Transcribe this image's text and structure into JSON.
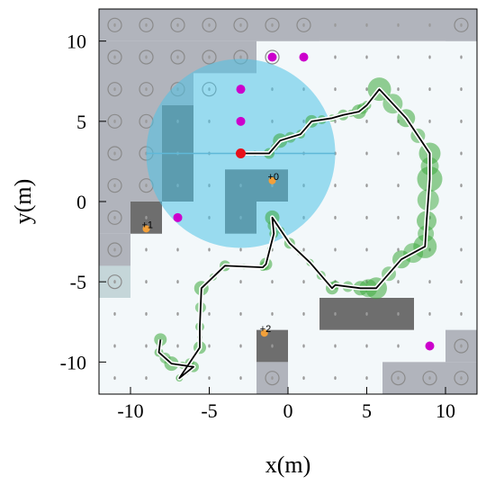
{
  "chart_data": {
    "type": "scatter",
    "title": "",
    "xlabel": "x(m)",
    "ylabel": "y(m)",
    "xlim": [
      -12,
      12
    ],
    "ylim": [
      -12,
      12
    ],
    "xticks": [
      -10,
      -5,
      0,
      5,
      10
    ],
    "yticks": [
      10,
      5,
      0,
      -5,
      -10
    ],
    "grid": false,
    "colors": {
      "background": "#f3f8fa",
      "blocked": "#b1b4bc",
      "blocked_light": "#c5d6d9",
      "obstacle": "#6e6e6e",
      "sensing": "#4fc3e6",
      "trajectory": "#000000",
      "uncertainty": "#3aa83a",
      "waypoint": "#cc00cc",
      "start": "#e8101a",
      "robot": "#f2a03a"
    },
    "blocked_cells": [
      [
        -12,
        10,
        12,
        12
      ],
      [
        -12,
        6,
        -10,
        10
      ],
      [
        -10,
        6,
        -6,
        10
      ],
      [
        -6,
        8,
        -2,
        10
      ],
      [
        -2,
        10,
        2,
        12
      ],
      [
        -12,
        -2,
        -8,
        6
      ],
      [
        -8,
        6,
        -6,
        8
      ],
      [
        -12,
        -6,
        -10,
        -2
      ],
      [
        -2,
        -12,
        0,
        -10
      ],
      [
        6,
        -12,
        12,
        -10
      ],
      [
        10,
        -10,
        12,
        -8
      ],
      [
        10,
        10,
        12,
        12
      ]
    ],
    "light_blocked_cells": [
      [
        -12,
        -6,
        -10,
        -4
      ]
    ],
    "obstacles": [
      [
        -10,
        -2,
        -8,
        0
      ],
      [
        -8,
        0,
        -6,
        6
      ],
      [
        -4,
        -2,
        -2,
        2
      ],
      [
        -2,
        0,
        0,
        2
      ],
      [
        -2,
        -10,
        0,
        -8
      ],
      [
        2,
        -8,
        8,
        -6
      ]
    ],
    "circle_markers": [
      [
        -11,
        11
      ],
      [
        -9,
        11
      ],
      [
        -7,
        11
      ],
      [
        -5,
        11
      ],
      [
        -3,
        11
      ],
      [
        -1,
        11
      ],
      [
        1,
        11
      ],
      [
        11,
        11
      ],
      [
        -11,
        9
      ],
      [
        -9,
        9
      ],
      [
        -7,
        9
      ],
      [
        -5,
        9
      ],
      [
        -3,
        9
      ],
      [
        -1,
        9
      ],
      [
        -11,
        7
      ],
      [
        -9,
        7
      ],
      [
        -7,
        7
      ],
      [
        -5,
        7
      ],
      [
        -11,
        5
      ],
      [
        -9,
        5
      ],
      [
        -11,
        3
      ],
      [
        -9,
        3
      ],
      [
        -11,
        1
      ],
      [
        -9,
        1
      ],
      [
        -11,
        -1
      ],
      [
        -11,
        -3
      ],
      [
        -11,
        -5
      ],
      [
        -1,
        -11
      ],
      [
        7,
        -11
      ],
      [
        9,
        -11
      ],
      [
        11,
        -11
      ],
      [
        11,
        -9
      ]
    ],
    "sensing_region": {
      "center": [
        -3,
        3
      ],
      "radius": 6
    },
    "waypoints": [
      [
        -1,
        9
      ],
      [
        1,
        9
      ],
      [
        -3,
        7
      ],
      [
        -3,
        5
      ],
      [
        -7,
        -1
      ],
      [
        9,
        -9
      ]
    ],
    "start": [
      -3,
      3
    ],
    "robots": [
      {
        "label": "+0",
        "x": -1,
        "y": 1.3
      },
      {
        "label": "+1",
        "x": -9,
        "y": -1.7
      },
      {
        "label": "+2",
        "x": -1.5,
        "y": -8.2
      }
    ],
    "series": [
      {
        "x": [
          -3.0,
          -1.2,
          -0.5,
          0.8,
          1.5,
          2.8,
          3.5,
          4.5,
          5.0,
          5.8,
          7.5,
          9.0,
          9.0,
          8.8,
          8.7,
          7.2,
          5.6,
          4.6,
          3.0,
          2.8,
          1.4,
          0.1,
          -1.0,
          -0.9,
          -1.4,
          -1.6,
          -4.0,
          -5.5,
          -5.6,
          -5.6,
          -6.9,
          -6.0,
          -7.4,
          -8.2,
          -8.1
        ],
        "y": [
          3.0,
          3.0,
          3.8,
          4.2,
          5.0,
          5.2,
          5.4,
          5.6,
          6.0,
          7.0,
          5.2,
          3.0,
          1.4,
          -1.2,
          -2.8,
          -3.6,
          -5.4,
          -5.4,
          -5.2,
          -5.4,
          -3.8,
          -2.6,
          -1.0,
          -2.0,
          -3.9,
          -4.1,
          -4.0,
          -5.4,
          -7.8,
          -9.1,
          -11.0,
          -10.3,
          -10.1,
          -9.4,
          -8.6
        ]
      }
    ]
  }
}
